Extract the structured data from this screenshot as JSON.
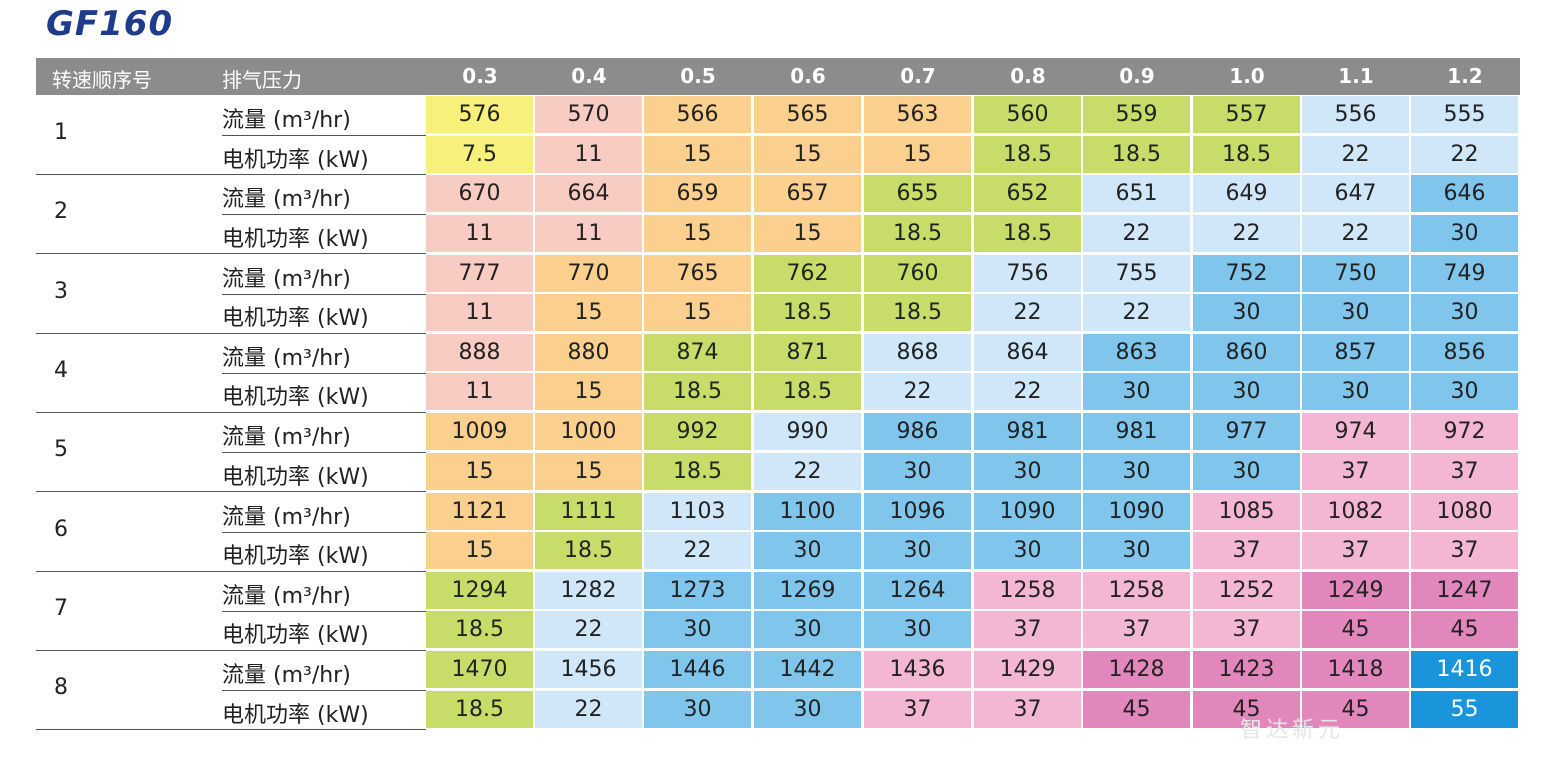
{
  "title": "GF160",
  "header": {
    "speed_order": "转速顺序号",
    "pressure": "排气压力",
    "pressures": [
      "0.3",
      "0.4",
      "0.5",
      "0.6",
      "0.7",
      "0.8",
      "0.9",
      "1.0",
      "1.1",
      "1.2"
    ]
  },
  "row_labels": {
    "flow": "流量 (m³/hr)",
    "power": "电机功率 (kW)"
  },
  "groups": [
    {
      "num": "1",
      "flow": [
        "576",
        "570",
        "566",
        "565",
        "563",
        "560",
        "559",
        "557",
        "556",
        "555"
      ],
      "power": [
        "7.5",
        "11",
        "15",
        "15",
        "15",
        "18.5",
        "18.5",
        "18.5",
        "22",
        "22"
      ],
      "colors": [
        "y",
        "pk",
        "or",
        "or",
        "or",
        "gr",
        "gr",
        "gr",
        "lb",
        "lb"
      ]
    },
    {
      "num": "2",
      "flow": [
        "670",
        "664",
        "659",
        "657",
        "655",
        "652",
        "651",
        "649",
        "647",
        "646"
      ],
      "power": [
        "11",
        "11",
        "15",
        "15",
        "18.5",
        "18.5",
        "22",
        "22",
        "22",
        "30"
      ],
      "colors": [
        "pk",
        "pk",
        "or",
        "or",
        "gr",
        "gr",
        "lb",
        "lb",
        "lb",
        "mb"
      ]
    },
    {
      "num": "3",
      "flow": [
        "777",
        "770",
        "765",
        "762",
        "760",
        "756",
        "755",
        "752",
        "750",
        "749"
      ],
      "power": [
        "11",
        "15",
        "15",
        "18.5",
        "18.5",
        "22",
        "22",
        "30",
        "30",
        "30"
      ],
      "colors": [
        "pk",
        "or",
        "or",
        "gr",
        "gr",
        "lb",
        "lb",
        "mb",
        "mb",
        "mb"
      ]
    },
    {
      "num": "4",
      "flow": [
        "888",
        "880",
        "874",
        "871",
        "868",
        "864",
        "863",
        "860",
        "857",
        "856"
      ],
      "power": [
        "11",
        "15",
        "18.5",
        "18.5",
        "22",
        "22",
        "30",
        "30",
        "30",
        "30"
      ],
      "colors": [
        "pk",
        "or",
        "gr",
        "gr",
        "lb",
        "lb",
        "mb",
        "mb",
        "mb",
        "mb"
      ]
    },
    {
      "num": "5",
      "flow": [
        "1009",
        "1000",
        "992",
        "990",
        "986",
        "981",
        "981",
        "977",
        "974",
        "972"
      ],
      "power": [
        "15",
        "15",
        "18.5",
        "22",
        "30",
        "30",
        "30",
        "30",
        "37",
        "37"
      ],
      "colors": [
        "or",
        "or",
        "gr",
        "lb",
        "mb",
        "mb",
        "mb",
        "mb",
        "lp",
        "lp"
      ]
    },
    {
      "num": "6",
      "flow": [
        "1121",
        "1111",
        "1103",
        "1100",
        "1096",
        "1090",
        "1090",
        "1085",
        "1082",
        "1080"
      ],
      "power": [
        "15",
        "18.5",
        "22",
        "30",
        "30",
        "30",
        "30",
        "37",
        "37",
        "37"
      ],
      "colors": [
        "or",
        "gr",
        "lb",
        "mb",
        "mb",
        "mb",
        "mb",
        "lp",
        "lp",
        "lp"
      ]
    },
    {
      "num": "7",
      "flow": [
        "1294",
        "1282",
        "1273",
        "1269",
        "1264",
        "1258",
        "1258",
        "1252",
        "1249",
        "1247"
      ],
      "power": [
        "18.5",
        "22",
        "30",
        "30",
        "30",
        "37",
        "37",
        "37",
        "45",
        "45"
      ],
      "colors": [
        "gr",
        "lb",
        "mb",
        "mb",
        "mb",
        "lp",
        "lp",
        "lp",
        "dp",
        "dp"
      ]
    },
    {
      "num": "8",
      "flow": [
        "1470",
        "1456",
        "1446",
        "1442",
        "1436",
        "1429",
        "1428",
        "1423",
        "1418",
        "1416"
      ],
      "power": [
        "18.5",
        "22",
        "30",
        "30",
        "37",
        "37",
        "45",
        "45",
        "45",
        "55"
      ],
      "colors": [
        "gr",
        "lb",
        "mb",
        "mb",
        "lp",
        "lp",
        "dp",
        "dp",
        "dp",
        "bb"
      ]
    }
  ],
  "watermark": "智达新元"
}
